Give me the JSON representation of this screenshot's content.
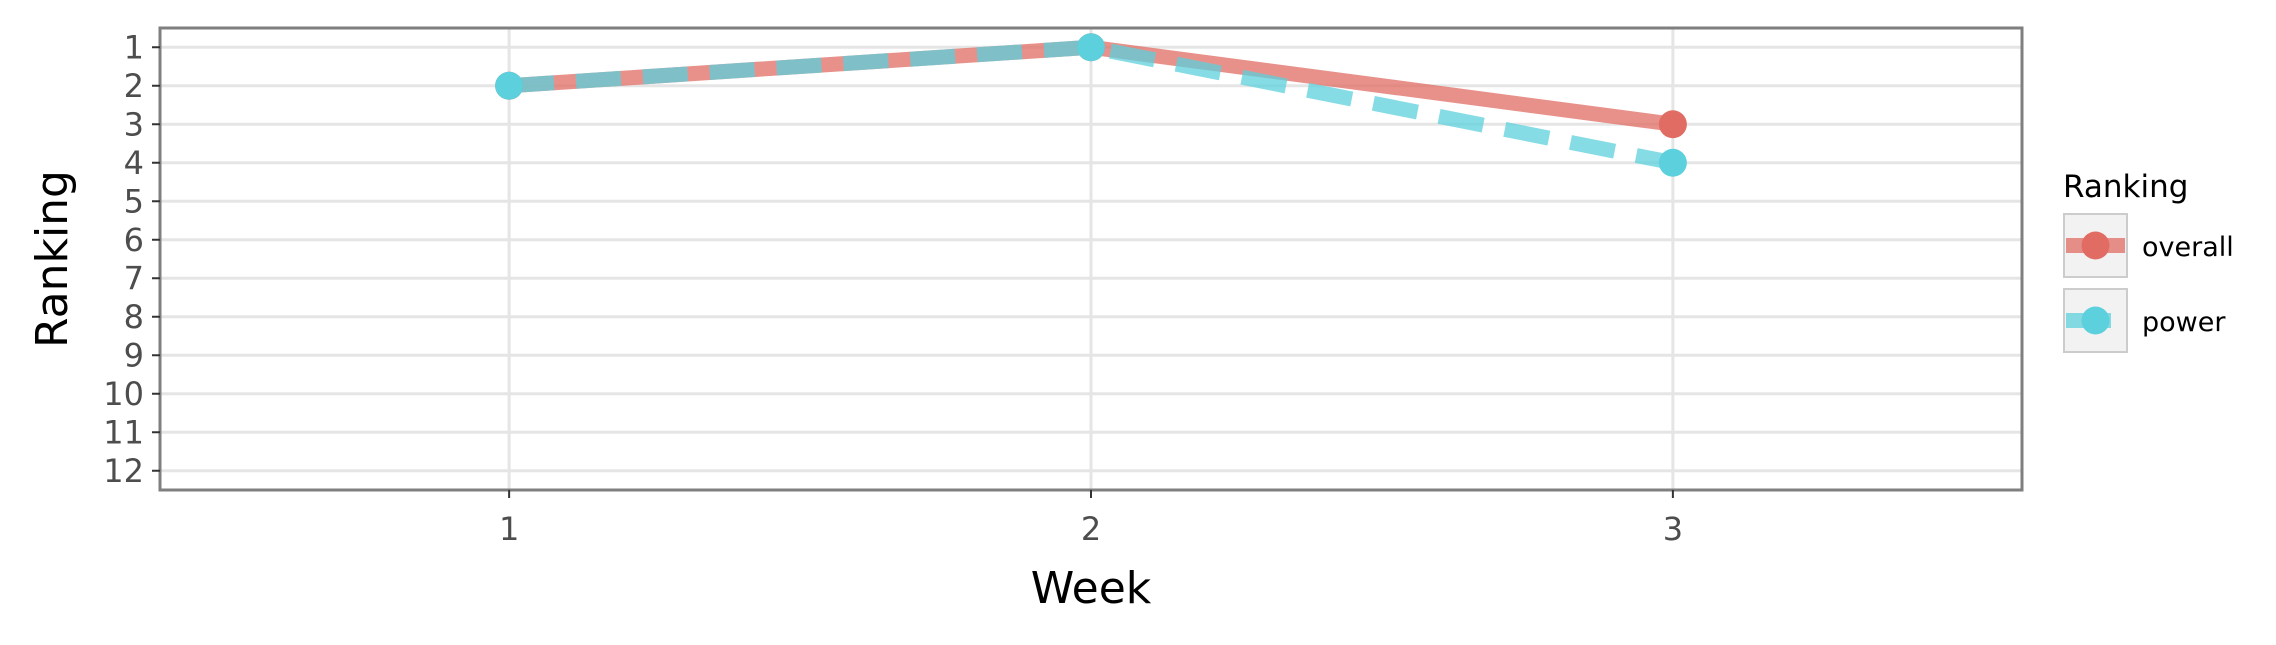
{
  "chart_data": {
    "type": "line",
    "title": "",
    "xlabel": "Week",
    "ylabel": "Ranking",
    "x": [
      1,
      2,
      3
    ],
    "x_ticks": [
      "1",
      "2",
      "3"
    ],
    "xlim": [
      0.4,
      3.6
    ],
    "y_ticks": [
      "1",
      "2",
      "3",
      "4",
      "5",
      "6",
      "7",
      "8",
      "9",
      "10",
      "11",
      "12"
    ],
    "ylim": [
      12.5,
      0.5
    ],
    "y_reversed": true,
    "grid": true,
    "legend": {
      "title": "Ranking",
      "placement": "right"
    },
    "series": [
      {
        "name": "overall",
        "values": [
          2,
          1,
          3
        ],
        "color": "#E06C63",
        "line_style": "solid"
      },
      {
        "name": "power",
        "values": [
          2,
          1,
          4
        ],
        "color": "#5CD0DC",
        "line_style": "dashed"
      }
    ]
  }
}
